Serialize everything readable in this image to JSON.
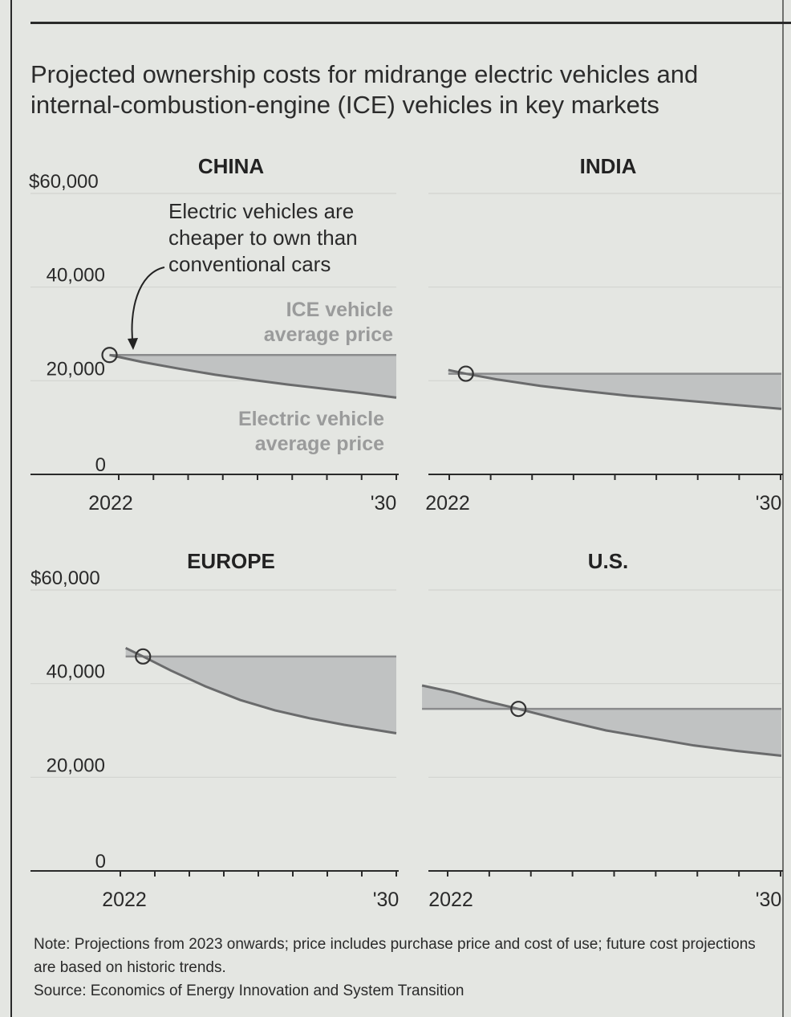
{
  "title": "Projected ownership costs for midrange electric vehicles and internal-combustion-engine (ICE) vehicles in key markets",
  "colors": {
    "ev_line": "#6a6b6c",
    "ice_line": "#8a8b8c",
    "fill": "#c0c2c2",
    "grid": "#d2d4d0",
    "axis": "#2a2a2a",
    "muted_label": "#9a9b9b"
  },
  "chart_data": [
    {
      "type": "area",
      "title": "CHINA",
      "x_labels": [
        "2022",
        "'30"
      ],
      "xlim": [
        2022,
        2030
      ],
      "ylim": [
        0,
        60000
      ],
      "y_ticks": [
        {
          "value": 60000,
          "label": "$60,000"
        },
        {
          "value": 40000,
          "label": "40,000"
        },
        {
          "value": 20000,
          "label": "20,000"
        },
        {
          "value": 0,
          "label": "0"
        }
      ],
      "crossover": {
        "x": 2022.1,
        "y": 25500
      },
      "series": [
        {
          "name": "ICE vehicle average price",
          "x": [
            2022.1,
            2030
          ],
          "values": [
            25500,
            25500
          ]
        },
        {
          "name": "Electric vehicle average price",
          "x": [
            2022.1,
            2023,
            2024,
            2025,
            2026,
            2027,
            2028,
            2029,
            2030
          ],
          "values": [
            25500,
            24000,
            22600,
            21300,
            20200,
            19200,
            18300,
            17400,
            16400
          ]
        }
      ],
      "annotations": [
        "Electric vehicles are cheaper to own than conventional cars",
        "ICE vehicle average price",
        "Electric vehicle average price"
      ]
    },
    {
      "type": "area",
      "title": "INDIA",
      "x_labels": [
        "2022",
        "'30"
      ],
      "xlim": [
        2022,
        2030
      ],
      "ylim": [
        0,
        60000
      ],
      "crossover": {
        "x": 2022.8,
        "y": 21500
      },
      "series": [
        {
          "name": "ICE vehicle average price",
          "x": [
            2022.4,
            2030
          ],
          "values": [
            21500,
            21500
          ]
        },
        {
          "name": "Electric vehicle average price",
          "x": [
            2022.4,
            2022.8,
            2023.5,
            2024.5,
            2025.5,
            2026.5,
            2027.5,
            2028.5,
            2030
          ],
          "values": [
            22300,
            21500,
            20300,
            18900,
            17800,
            16800,
            16000,
            15200,
            14000
          ]
        }
      ]
    },
    {
      "type": "area",
      "title": "EUROPE",
      "x_labels": [
        "2022",
        "'30"
      ],
      "xlim": [
        2022,
        2030
      ],
      "ylim": [
        0,
        60000
      ],
      "y_ticks": [
        {
          "value": 60000,
          "label": "$60,000"
        },
        {
          "value": 40000,
          "label": "40,000"
        },
        {
          "value": 20000,
          "label": "20,000"
        },
        {
          "value": 0,
          "label": "0"
        }
      ],
      "crossover": {
        "x": 2022.7,
        "y": 45800
      },
      "series": [
        {
          "name": "ICE vehicle average price",
          "x": [
            2022.2,
            2030
          ],
          "values": [
            45800,
            45800
          ]
        },
        {
          "name": "Electric vehicle average price",
          "x": [
            2022.2,
            2022.7,
            2023.5,
            2024.5,
            2025.5,
            2026.5,
            2027.5,
            2028.5,
            2030
          ],
          "values": [
            47600,
            45800,
            42800,
            39400,
            36500,
            34300,
            32600,
            31200,
            29400
          ]
        }
      ]
    },
    {
      "type": "area",
      "title": "U.S.",
      "x_labels": [
        "2022",
        "'30"
      ],
      "xlim": [
        2022,
        2030
      ],
      "ylim": [
        0,
        60000
      ],
      "crossover": {
        "x": 2024,
        "y": 34600
      },
      "series": [
        {
          "name": "ICE vehicle average price",
          "x": [
            2021.8,
            2030
          ],
          "values": [
            34600,
            34600
          ]
        },
        {
          "name": "Electric vehicle average price",
          "x": [
            2021.8,
            2022.5,
            2023.2,
            2024,
            2025,
            2026,
            2027,
            2028,
            2029,
            2030
          ],
          "values": [
            39600,
            38200,
            36400,
            34600,
            32200,
            30000,
            28400,
            26800,
            25600,
            24600
          ]
        }
      ]
    }
  ],
  "footer": {
    "note": "Note: Projections from 2023 onwards; price includes purchase price and cost of use; future cost projections are based on historic trends.",
    "source": "Source: Economics of Energy Innovation and System Transition"
  }
}
